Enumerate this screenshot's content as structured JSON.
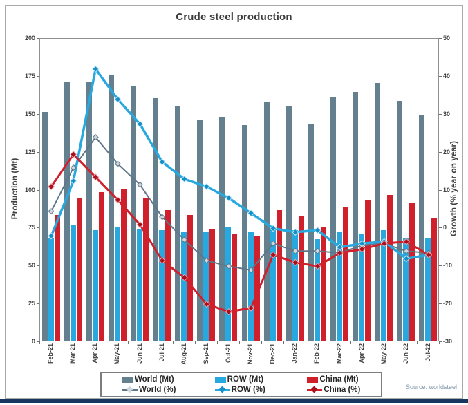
{
  "title": "Crude steel production",
  "source": "Source: worldsteel",
  "chart_data": {
    "type": "combo-bar-line",
    "title": "Crude steel production",
    "categories": [
      "Feb-21",
      "Mar-21",
      "Apr-21",
      "May-21",
      "Jun-21",
      "Jul-21",
      "Aug-21",
      "Sep-21",
      "Oct-21",
      "Nov-21",
      "Dec-21",
      "Jan-22",
      "Feb-22",
      "Mar-22",
      "Apr-22",
      "May-22",
      "Jun-22",
      "Jul-22"
    ],
    "left_axis": {
      "label": "Production (Mt)",
      "min": 0,
      "max": 200,
      "step": 25,
      "tick_labels": [
        "200",
        "175",
        "150",
        "125",
        "100",
        "75",
        "50",
        "25",
        "0"
      ]
    },
    "right_axis": {
      "label": "Growth (% year on year)",
      "min": -30,
      "max": 50,
      "step": 10,
      "tick_labels": [
        "50",
        "40",
        "30",
        "20",
        "10",
        "0",
        "-10",
        "-20",
        "-30"
      ]
    },
    "grid": "off",
    "legend_position": "bottom",
    "bar_series": [
      {
        "name": "World (Mt)",
        "color": "#64808f",
        "values": [
          151,
          171,
          171,
          175,
          168,
          160,
          155,
          146,
          147,
          142,
          157,
          155,
          143,
          161,
          164,
          170,
          158,
          149
        ]
      },
      {
        "name": "ROW (Mt)",
        "color": "#27a8df",
        "values": [
          68,
          76,
          73,
          75,
          74,
          73,
          72,
          72,
          75,
          72,
          75,
          73,
          67,
          72,
          70,
          73,
          68,
          68
        ]
      },
      {
        "name": "China (Mt)",
        "color": "#cf202c",
        "values": [
          83,
          94,
          98,
          100,
          94,
          86,
          83,
          74,
          70,
          69,
          86,
          82,
          75,
          88,
          93,
          96,
          91,
          81
        ]
      }
    ],
    "line_series": [
      {
        "name": "World (%)",
        "color": "#5f7689",
        "marker_fill": "#cdd7dd",
        "marker_stroke": "#5f7689",
        "width": 2,
        "values": [
          4.5,
          16,
          24,
          17,
          11.5,
          3,
          -3,
          -8.5,
          -10,
          -11,
          -4,
          -6,
          -6,
          -6.5,
          -4.5,
          -4,
          -6,
          -6.5
        ]
      },
      {
        "name": "ROW (%)",
        "color": "#27a8df",
        "marker_fill": "#148fc7",
        "marker_stroke": "#bfe6f7",
        "width": 3.5,
        "values": [
          -2,
          12.5,
          42,
          34,
          27.5,
          17.5,
          13,
          11,
          8,
          4,
          0,
          -1,
          -0.5,
          -5,
          -4,
          -3.5,
          -8,
          -7
        ]
      },
      {
        "name": "China (%)",
        "color": "#cf202c",
        "marker_fill": "#a8101c",
        "marker_stroke": "#efa3a8",
        "width": 3,
        "values": [
          11,
          19.5,
          13.5,
          7.5,
          1,
          -8.5,
          -13,
          -20,
          -22,
          -21,
          -7,
          -9,
          -10,
          -6.5,
          -5.5,
          -4,
          -3.5,
          -7
        ]
      }
    ],
    "legend": {
      "rows": [
        [
          "World (Mt)",
          "ROW (Mt)",
          "China (Mt)"
        ],
        [
          "World (%)",
          "ROW (%)",
          "China (%)"
        ]
      ]
    }
  },
  "colors": {
    "frame_border": "#a9aaac",
    "plot_border": "#8f9091",
    "bottom_bar": "#17375e",
    "title_text": "#3d3d3d",
    "tick_text": "#404040",
    "source_text": "#8096aa"
  }
}
